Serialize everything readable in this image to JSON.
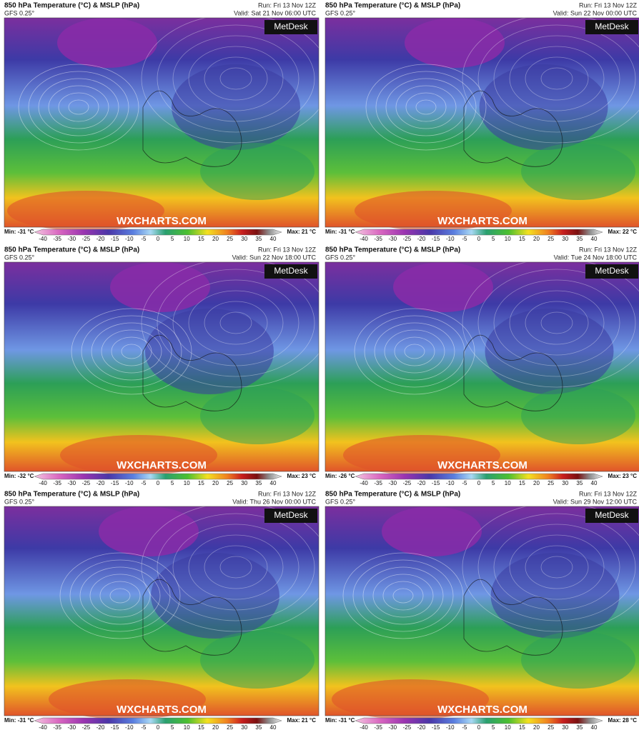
{
  "colorbar": {
    "ticks": [
      -40,
      -35,
      -30,
      -25,
      -20,
      -15,
      -10,
      -5,
      0,
      5,
      10,
      15,
      20,
      25,
      30,
      35,
      40
    ]
  },
  "panels": [
    {
      "title": "850 hPa Temperature (°C) & MSLP (hPa)",
      "model": "GFS 0.25°",
      "run": "Run: Fri 13 Nov 12Z",
      "valid": "Valid: Sat 21 Nov 06:00 UTC",
      "min": "Min: -31 °C",
      "max": "Max: 21 °C",
      "logo": "MetDesk",
      "watermark": "WXCHARTS.COM"
    },
    {
      "title": "850 hPa Temperature (°C) & MSLP (hPa)",
      "model": "GFS 0.25°",
      "run": "Run: Fri 13 Nov 12Z",
      "valid": "Valid: Sun 22 Nov 00:00 UTC",
      "min": "Min: -31 °C",
      "max": "Max: 22 °C",
      "logo": "MetDesk",
      "watermark": "WXCHARTS.COM"
    },
    {
      "title": "850 hPa Temperature (°C) & MSLP (hPa)",
      "model": "GFS 0.25°",
      "run": "Run: Fri 13 Nov 12Z",
      "valid": "Valid: Sun 22 Nov 18:00 UTC",
      "min": "Min: -32 °C",
      "max": "Max: 23 °C",
      "logo": "MetDesk",
      "watermark": "WXCHARTS.COM"
    },
    {
      "title": "850 hPa Temperature (°C) & MSLP (hPa)",
      "model": "GFS 0.25°",
      "run": "Run: Fri 13 Nov 12Z",
      "valid": "Valid: Tue 24 Nov 18:00 UTC",
      "min": "Min: -26 °C",
      "max": "Max: 23 °C",
      "logo": "MetDesk",
      "watermark": "WXCHARTS.COM"
    },
    {
      "title": "850 hPa Temperature (°C) & MSLP (hPa)",
      "model": "GFS 0.25°",
      "run": "Run: Fri 13 Nov 12Z",
      "valid": "Valid: Thu 26 Nov 00:00 UTC",
      "min": "Min: -31 °C",
      "max": "Max: 21 °C",
      "logo": "MetDesk",
      "watermark": "WXCHARTS.COM"
    },
    {
      "title": "850 hPa Temperature (°C) & MSLP (hPa)",
      "model": "GFS 0.25°",
      "run": "Run: Fri 13 Nov 12Z",
      "valid": "Valid: Sun 29 Nov 12:00 UTC",
      "min": "Min: -31 °C",
      "max": "Max: 28 °C",
      "logo": "MetDesk",
      "watermark": "WXCHARTS.COM"
    }
  ]
}
